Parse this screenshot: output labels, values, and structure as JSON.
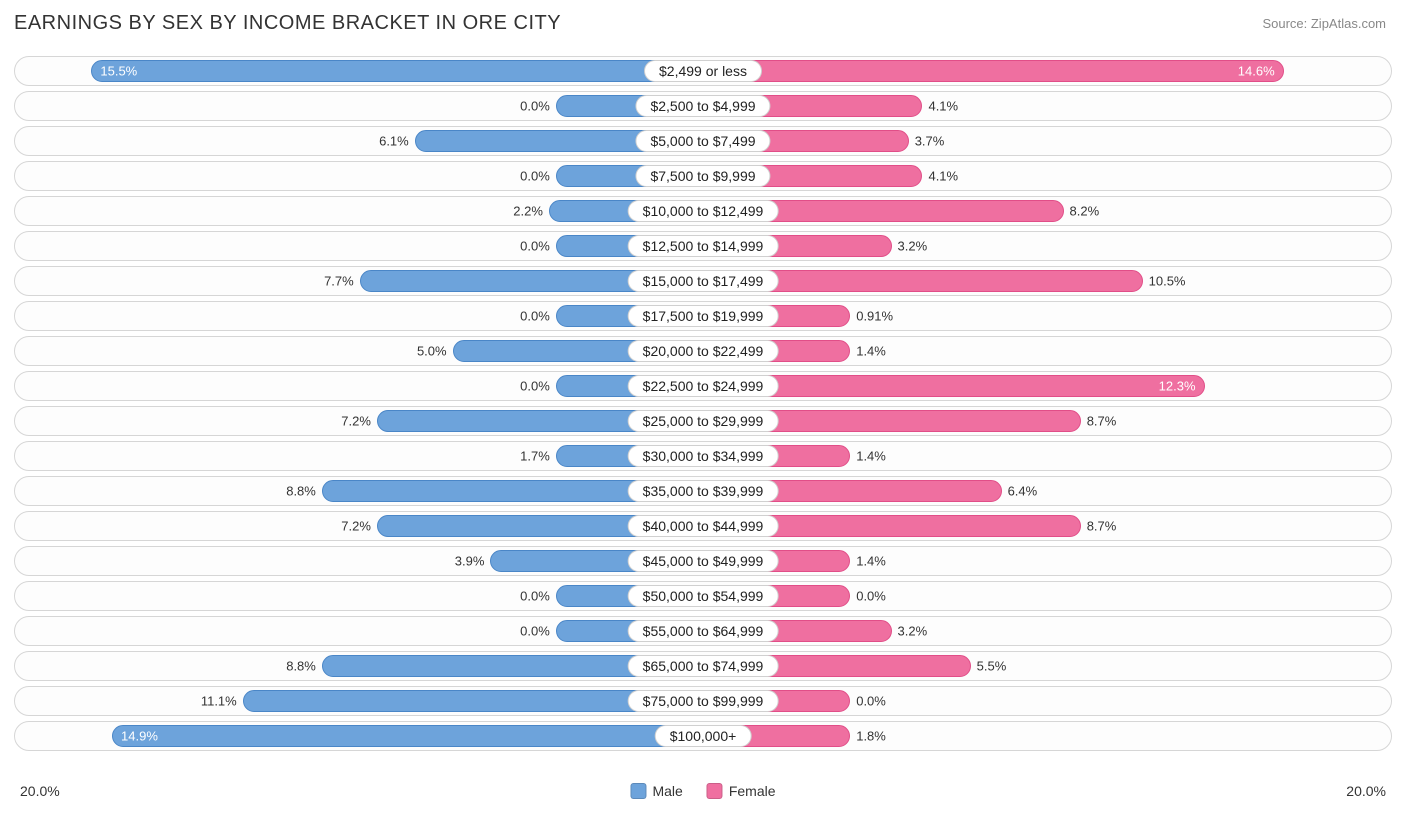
{
  "title": "EARNINGS BY SEX BY INCOME BRACKET IN ORE CITY",
  "source": "Source: ZipAtlas.com",
  "axis_max": 20.0,
  "axis_label_left": "20.0%",
  "axis_label_right": "20.0%",
  "colors": {
    "male_fill": "#6da3db",
    "male_stroke": "#4a86c7",
    "female_fill": "#ef6fa0",
    "female_stroke": "#e14e88",
    "track_border": "#d6d6d6",
    "background": "#ffffff",
    "text": "#333333"
  },
  "min_bar_pct": 2.0,
  "label_inside_threshold": 12.0,
  "legend": {
    "male": "Male",
    "female": "Female"
  },
  "rows": [
    {
      "label": "$2,499 or less",
      "male": 15.5,
      "male_label": "15.5%",
      "female": 14.6,
      "female_label": "14.6%"
    },
    {
      "label": "$2,500 to $4,999",
      "male": 0.0,
      "male_label": "0.0%",
      "female": 4.1,
      "female_label": "4.1%"
    },
    {
      "label": "$5,000 to $7,499",
      "male": 6.1,
      "male_label": "6.1%",
      "female": 3.7,
      "female_label": "3.7%"
    },
    {
      "label": "$7,500 to $9,999",
      "male": 0.0,
      "male_label": "0.0%",
      "female": 4.1,
      "female_label": "4.1%"
    },
    {
      "label": "$10,000 to $12,499",
      "male": 2.2,
      "male_label": "2.2%",
      "female": 8.2,
      "female_label": "8.2%"
    },
    {
      "label": "$12,500 to $14,999",
      "male": 0.0,
      "male_label": "0.0%",
      "female": 3.2,
      "female_label": "3.2%"
    },
    {
      "label": "$15,000 to $17,499",
      "male": 7.7,
      "male_label": "7.7%",
      "female": 10.5,
      "female_label": "10.5%"
    },
    {
      "label": "$17,500 to $19,999",
      "male": 0.0,
      "male_label": "0.0%",
      "female": 0.91,
      "female_label": "0.91%"
    },
    {
      "label": "$20,000 to $22,499",
      "male": 5.0,
      "male_label": "5.0%",
      "female": 1.4,
      "female_label": "1.4%"
    },
    {
      "label": "$22,500 to $24,999",
      "male": 0.0,
      "male_label": "0.0%",
      "female": 12.3,
      "female_label": "12.3%"
    },
    {
      "label": "$25,000 to $29,999",
      "male": 7.2,
      "male_label": "7.2%",
      "female": 8.7,
      "female_label": "8.7%"
    },
    {
      "label": "$30,000 to $34,999",
      "male": 1.7,
      "male_label": "1.7%",
      "female": 1.4,
      "female_label": "1.4%"
    },
    {
      "label": "$35,000 to $39,999",
      "male": 8.8,
      "male_label": "8.8%",
      "female": 6.4,
      "female_label": "6.4%"
    },
    {
      "label": "$40,000 to $44,999",
      "male": 7.2,
      "male_label": "7.2%",
      "female": 8.7,
      "female_label": "8.7%"
    },
    {
      "label": "$45,000 to $49,999",
      "male": 3.9,
      "male_label": "3.9%",
      "female": 1.4,
      "female_label": "1.4%"
    },
    {
      "label": "$50,000 to $54,999",
      "male": 0.0,
      "male_label": "0.0%",
      "female": 0.0,
      "female_label": "0.0%"
    },
    {
      "label": "$55,000 to $64,999",
      "male": 0.0,
      "male_label": "0.0%",
      "female": 3.2,
      "female_label": "3.2%"
    },
    {
      "label": "$65,000 to $74,999",
      "male": 8.8,
      "male_label": "8.8%",
      "female": 5.5,
      "female_label": "5.5%"
    },
    {
      "label": "$75,000 to $99,999",
      "male": 11.1,
      "male_label": "11.1%",
      "female": 0.0,
      "female_label": "0.0%"
    },
    {
      "label": "$100,000+",
      "male": 14.9,
      "male_label": "14.9%",
      "female": 1.8,
      "female_label": "1.8%"
    }
  ]
}
